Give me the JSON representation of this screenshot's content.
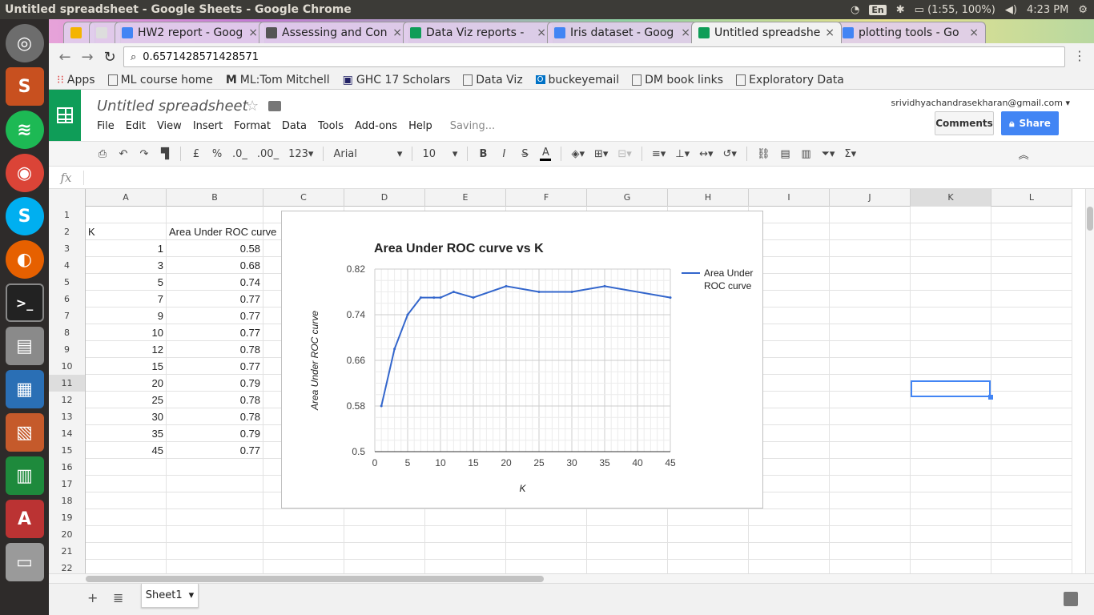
{
  "window": {
    "title": "Untitled spreadsheet - Google Sheets - Google Chrome"
  },
  "tray": {
    "lang": "En",
    "battery": "(1:55, 100%)",
    "clock": "4:23 PM"
  },
  "tabs": [
    {
      "label": "",
      "color": "#f4b400"
    },
    {
      "label": "",
      "color": "#dddddd"
    },
    {
      "label": "HW2 report - Goog",
      "color": "#4285f4"
    },
    {
      "label": "Assessing and Con",
      "color": "#555555"
    },
    {
      "label": "Data Viz reports - ",
      "color": "#0f9d58"
    },
    {
      "label": "Iris dataset - Goog",
      "color": "#4285f4"
    },
    {
      "label": "Untitled spreadshe",
      "color": "#0f9d58"
    },
    {
      "label": "plotting tools - Go",
      "color": "#4285f4"
    }
  ],
  "omnibox": {
    "url": "0.6571428571428571"
  },
  "bookmarks": [
    "Apps",
    "ML course home",
    "ML:Tom Mitchell",
    "GHC 17 Scholars",
    "Data Viz",
    "buckeyemail",
    "DM book links",
    "Exploratory Data"
  ],
  "sheets": {
    "title": "Untitled spreadsheet",
    "menu": [
      "File",
      "Edit",
      "View",
      "Insert",
      "Format",
      "Data",
      "Tools",
      "Add-ons",
      "Help"
    ],
    "saving": "Saving...",
    "account": "srividhyachandrasekharan@gmail.com",
    "comments": "Comments",
    "share": "Share"
  },
  "toolbar": {
    "currency": "£",
    "percent": "%",
    "dec_less": ".0_",
    "dec_more": ".00_",
    "format": "123",
    "font": "Arial",
    "size": "10",
    "bold": "B",
    "italic": "I",
    "strike": "S",
    "textcolor": "A"
  },
  "grid": {
    "columns": [
      "A",
      "B",
      "C",
      "D",
      "E",
      "F",
      "G",
      "H",
      "I",
      "J",
      "K",
      "L"
    ],
    "rows": [
      "1",
      "2",
      "3",
      "4",
      "5",
      "6",
      "7",
      "8",
      "9",
      "10",
      "11",
      "12",
      "13",
      "14",
      "15",
      "16",
      "17",
      "18",
      "19",
      "20",
      "21",
      "22"
    ],
    "header": {
      "a": "K",
      "b": "Area Under ROC curve"
    },
    "data": [
      {
        "k": "1",
        "auc": "0.58"
      },
      {
        "k": "3",
        "auc": "0.68"
      },
      {
        "k": "5",
        "auc": "0.74"
      },
      {
        "k": "7",
        "auc": "0.77"
      },
      {
        "k": "9",
        "auc": "0.77"
      },
      {
        "k": "10",
        "auc": "0.77"
      },
      {
        "k": "12",
        "auc": "0.78"
      },
      {
        "k": "15",
        "auc": "0.77"
      },
      {
        "k": "20",
        "auc": "0.79"
      },
      {
        "k": "25",
        "auc": "0.78"
      },
      {
        "k": "30",
        "auc": "0.78"
      },
      {
        "k": "35",
        "auc": "0.79"
      },
      {
        "k": "45",
        "auc": "0.77"
      }
    ]
  },
  "sheet_tab": "Sheet1",
  "chart_data": {
    "type": "line",
    "title": "Area Under ROC curve vs K",
    "xlabel": "K",
    "ylabel": "Area Under ROC curve",
    "x": [
      1,
      3,
      5,
      7,
      9,
      10,
      12,
      15,
      20,
      25,
      30,
      35,
      45
    ],
    "series": [
      {
        "name": "Area Under ROC curve",
        "values": [
          0.58,
          0.68,
          0.74,
          0.77,
          0.77,
          0.77,
          0.78,
          0.77,
          0.79,
          0.78,
          0.78,
          0.79,
          0.77
        ],
        "color": "#3366cc"
      }
    ],
    "xlim": [
      0,
      45
    ],
    "ylim": [
      0.5,
      0.82
    ],
    "xticks": [
      "0",
      "5",
      "10",
      "15",
      "20",
      "25",
      "30",
      "35",
      "40",
      "45"
    ],
    "yticks": [
      "0.5",
      "0.58",
      "0.66",
      "0.74",
      "0.82"
    ],
    "legend": "right",
    "legend_lines": [
      "Area Under",
      "ROC curve"
    ],
    "grid": true
  }
}
